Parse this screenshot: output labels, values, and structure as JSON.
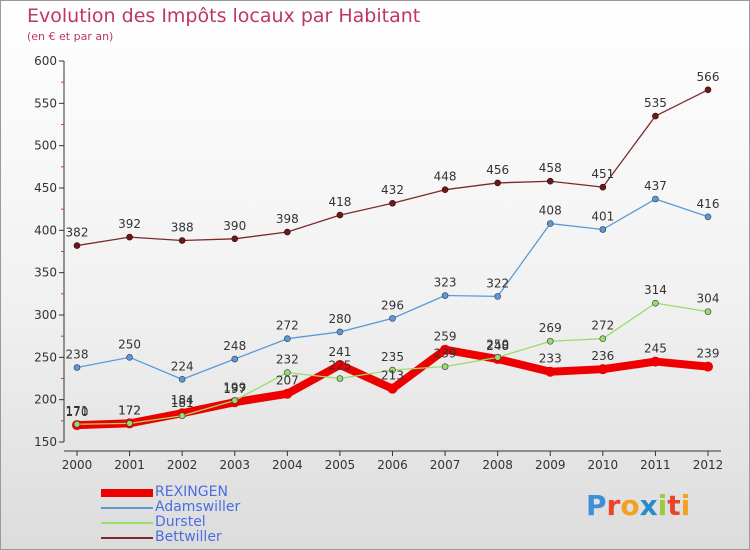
{
  "chart_data": {
    "type": "line",
    "title": "Evolution des Impôts locaux par Habitant",
    "subtitle": "(en € et par an)",
    "xlabel": "",
    "ylabel": "",
    "ylim": [
      150,
      600
    ],
    "yticks": [
      150,
      200,
      250,
      300,
      350,
      400,
      450,
      500,
      550,
      600
    ],
    "x": [
      "2000",
      "2001",
      "2002",
      "2003",
      "2004",
      "2005",
      "2006",
      "2007",
      "2008",
      "2009",
      "2010",
      "2011",
      "2012"
    ],
    "grid": false,
    "legend_position": "bottom-left",
    "series": [
      {
        "name": "REXINGEN",
        "color": "#ee0000",
        "values": [
          170,
          172,
          184,
          197,
          207,
          241,
          213,
          259,
          248,
          233,
          236,
          245,
          239
        ],
        "labels": [
          "170",
          "172",
          "184",
          "197",
          "207",
          "241",
          "213",
          "259",
          "248",
          "233",
          "236",
          "245",
          "239"
        ]
      },
      {
        "name": "Adamswiller",
        "color": "#5b9bd5",
        "values": [
          238,
          250,
          224,
          248,
          272,
          280,
          296,
          323,
          322,
          408,
          401,
          437,
          416
        ],
        "labels": [
          "238",
          "250",
          "224",
          "248",
          "272",
          "280",
          "296",
          "323",
          "322",
          "408",
          "401",
          "437",
          "416"
        ]
      },
      {
        "name": "Durstel",
        "color": "#99dd66",
        "values": [
          171,
          172,
          181,
          199,
          232,
          225,
          235,
          239,
          250,
          269,
          272,
          314,
          304
        ],
        "labels": [
          "171",
          "172",
          "181",
          "199",
          "232",
          "225",
          "235",
          "239",
          "250",
          "269",
          "272",
          "314",
          "304"
        ]
      },
      {
        "name": "Bettwiller",
        "color": "#7a2a2a",
        "values": [
          382,
          392,
          388,
          390,
          398,
          418,
          432,
          448,
          456,
          458,
          451,
          535,
          566
        ],
        "labels": [
          "382",
          "392",
          "388",
          "390",
          "398",
          "418",
          "432",
          "448",
          "456",
          "458",
          "451",
          "535",
          "566"
        ]
      }
    ]
  },
  "logo": {
    "text": "Proxiti",
    "letters": [
      "P",
      "r",
      "o",
      "x",
      "i",
      "t",
      "i"
    ],
    "colors": [
      "#3d8fd8",
      "#e8452a",
      "#f4a020",
      "#2a8ad0",
      "#9bcb3c",
      "#e8452a",
      "#f4a020"
    ]
  }
}
